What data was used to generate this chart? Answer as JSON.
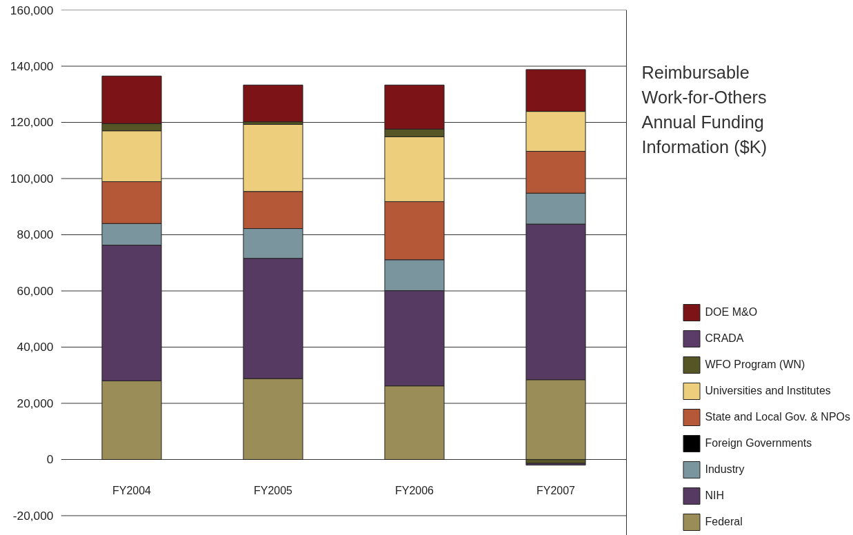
{
  "chart_data": {
    "type": "bar",
    "stacked": true,
    "title": "Reimbursable\nWork-for-Others\nAnnual Funding\nInformation ($K)",
    "categories": [
      "FY2004",
      "FY2005",
      "FY2006",
      "FY2007"
    ],
    "series": [
      {
        "name": "Federal",
        "color": "#9b8d57",
        "values": [
          28000,
          28800,
          26200,
          28400
        ]
      },
      {
        "name": "NIH",
        "color": "#573a61",
        "values": [
          48300,
          42800,
          33900,
          55400
        ]
      },
      {
        "name": "Industry",
        "color": "#7b959f",
        "values": [
          7700,
          10600,
          11000,
          11000
        ]
      },
      {
        "name": "Foreign Governments",
        "color": "#000000",
        "values": [
          null,
          null,
          null,
          null
        ]
      },
      {
        "name": "State and Local Gov. & NPOs",
        "color": "#b55837",
        "values": [
          14900,
          13200,
          20700,
          14900
        ]
      },
      {
        "name": "Universities and Institutes",
        "color": "#ecce7c",
        "values": [
          18100,
          23900,
          23100,
          14200
        ]
      },
      {
        "name": "WFO Program (WN)",
        "color": "#555526",
        "values": [
          2600,
          900,
          2700,
          -1400
        ]
      },
      {
        "name": "CRADA",
        "color": "#5b3b68",
        "values": [
          null,
          null,
          null,
          -600
        ]
      },
      {
        "name": "DOE M&O",
        "color": "#7c1417",
        "values": [
          16900,
          13100,
          15700,
          14900
        ]
      }
    ],
    "ylim": [
      -27000,
      160000
    ],
    "yticks": [
      {
        "value": -20000,
        "label": "-20,000"
      },
      0,
      {
        "value": 20000,
        "label": "20,000"
      },
      {
        "value": 40000,
        "label": "40,000"
      },
      {
        "value": 60000,
        "label": "60,000"
      },
      {
        "value": 80000,
        "label": "80,000"
      },
      {
        "value": 100000,
        "label": "100,000"
      },
      {
        "value": 120000,
        "label": "120,000"
      },
      {
        "value": 140000,
        "label": "140,000"
      },
      {
        "value": 160000,
        "label": "160,000"
      }
    ],
    "grid": "y",
    "legend": "bottom right"
  }
}
